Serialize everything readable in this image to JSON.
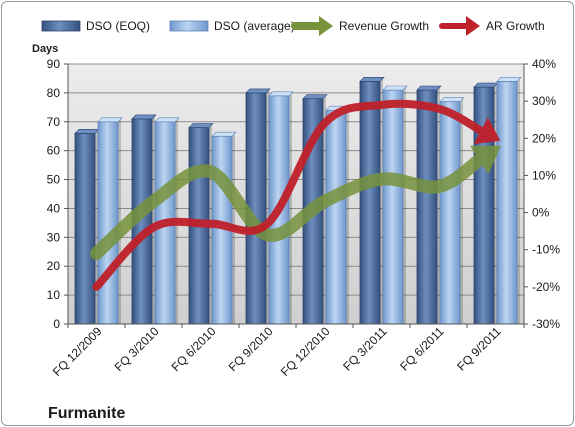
{
  "chart_data": {
    "type": "bar",
    "title": "",
    "company": "Furmanite",
    "ylabel": "Days",
    "ylim": [
      0,
      90
    ],
    "y_ticks": [
      0,
      10,
      20,
      30,
      40,
      50,
      60,
      70,
      80,
      90
    ],
    "y2lim": [
      -0.3,
      0.4
    ],
    "y2_ticks": [
      "-30%",
      "-20%",
      "-10%",
      "0%",
      "10%",
      "20%",
      "30%",
      "40%"
    ],
    "categories": [
      "FQ 12/2009",
      "FQ 3/2010",
      "FQ 6/2010",
      "FQ 9/2010",
      "FQ 12/2010",
      "FQ 3/2011",
      "FQ 6/2011",
      "FQ 9/2011"
    ],
    "grid": true,
    "legend_position": "top",
    "series": [
      {
        "name": "DSO (EOQ)",
        "type": "bar",
        "axis": "left",
        "color": "#4a6a9a",
        "values": [
          66,
          71,
          68,
          80,
          78,
          84,
          81,
          82
        ]
      },
      {
        "name": "DSO (average)",
        "type": "bar",
        "axis": "left",
        "color": "#8fb4e3",
        "values": [
          70,
          70,
          65,
          79,
          74,
          81,
          77,
          84
        ]
      },
      {
        "name": "Revenue Growth",
        "type": "line-arrow",
        "axis": "right",
        "color": "#77933c",
        "values": [
          -0.11,
          0.03,
          0.11,
          -0.06,
          0.03,
          0.09,
          0.07,
          0.17
        ]
      },
      {
        "name": "AR Growth",
        "type": "line-arrow",
        "axis": "right",
        "color": "#c0202a",
        "values": [
          -0.2,
          -0.04,
          -0.03,
          -0.03,
          0.24,
          0.29,
          0.28,
          0.2
        ]
      }
    ]
  }
}
